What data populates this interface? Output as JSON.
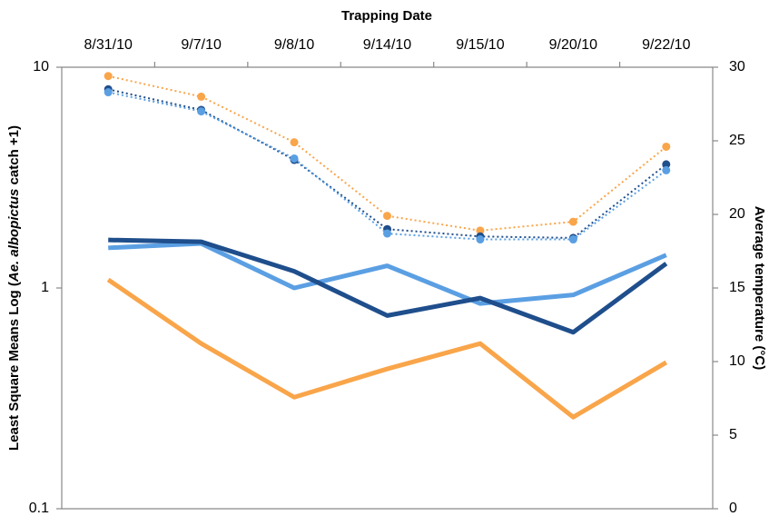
{
  "chart_data": {
    "type": "line",
    "x_label": "Trapping Date",
    "y_label_parts": [
      "Least Square Means Log (",
      "Ae. albopictus",
      "  catch +1)"
    ],
    "y2_label": "Average temperature (°C)",
    "categories": [
      "8/31/10",
      "9/7/10",
      "9/8/10",
      "9/14/10",
      "9/15/10",
      "9/20/10",
      "9/22/10"
    ],
    "yscale": "log",
    "ylim": [
      0.1,
      10
    ],
    "yticks": [
      0.1,
      1,
      10
    ],
    "y2lim": [
      0,
      30
    ],
    "y2ticks": [
      0,
      5,
      10,
      15,
      20,
      25,
      30
    ],
    "series": [
      {
        "color": "#f9a54a",
        "style": "solid",
        "values": [
          1.09,
          0.56,
          0.32,
          0.43,
          0.56,
          0.26,
          0.46
        ]
      },
      {
        "color": "#5b9fe3",
        "style": "solid",
        "values": [
          1.52,
          1.59,
          1.0,
          1.26,
          0.85,
          0.93,
          1.41
        ]
      },
      {
        "color": "#1f4e8c",
        "style": "solid",
        "values": [
          1.65,
          1.62,
          1.19,
          0.75,
          0.9,
          0.63,
          1.29
        ]
      },
      {
        "color": "#f9a54a",
        "style": "dotted",
        "axis": "y2",
        "values": [
          29.4,
          28.0,
          24.9,
          19.9,
          18.9,
          19.5,
          24.6
        ]
      },
      {
        "color": "#1f4e8c",
        "style": "dotted",
        "axis": "y2",
        "values": [
          28.5,
          27.1,
          23.7,
          19.0,
          18.5,
          18.4,
          23.4
        ]
      },
      {
        "color": "#5b9fe3",
        "style": "dotted",
        "axis": "y2",
        "values": [
          28.3,
          27.0,
          23.8,
          18.7,
          18.3,
          18.3,
          23.0
        ]
      }
    ]
  }
}
